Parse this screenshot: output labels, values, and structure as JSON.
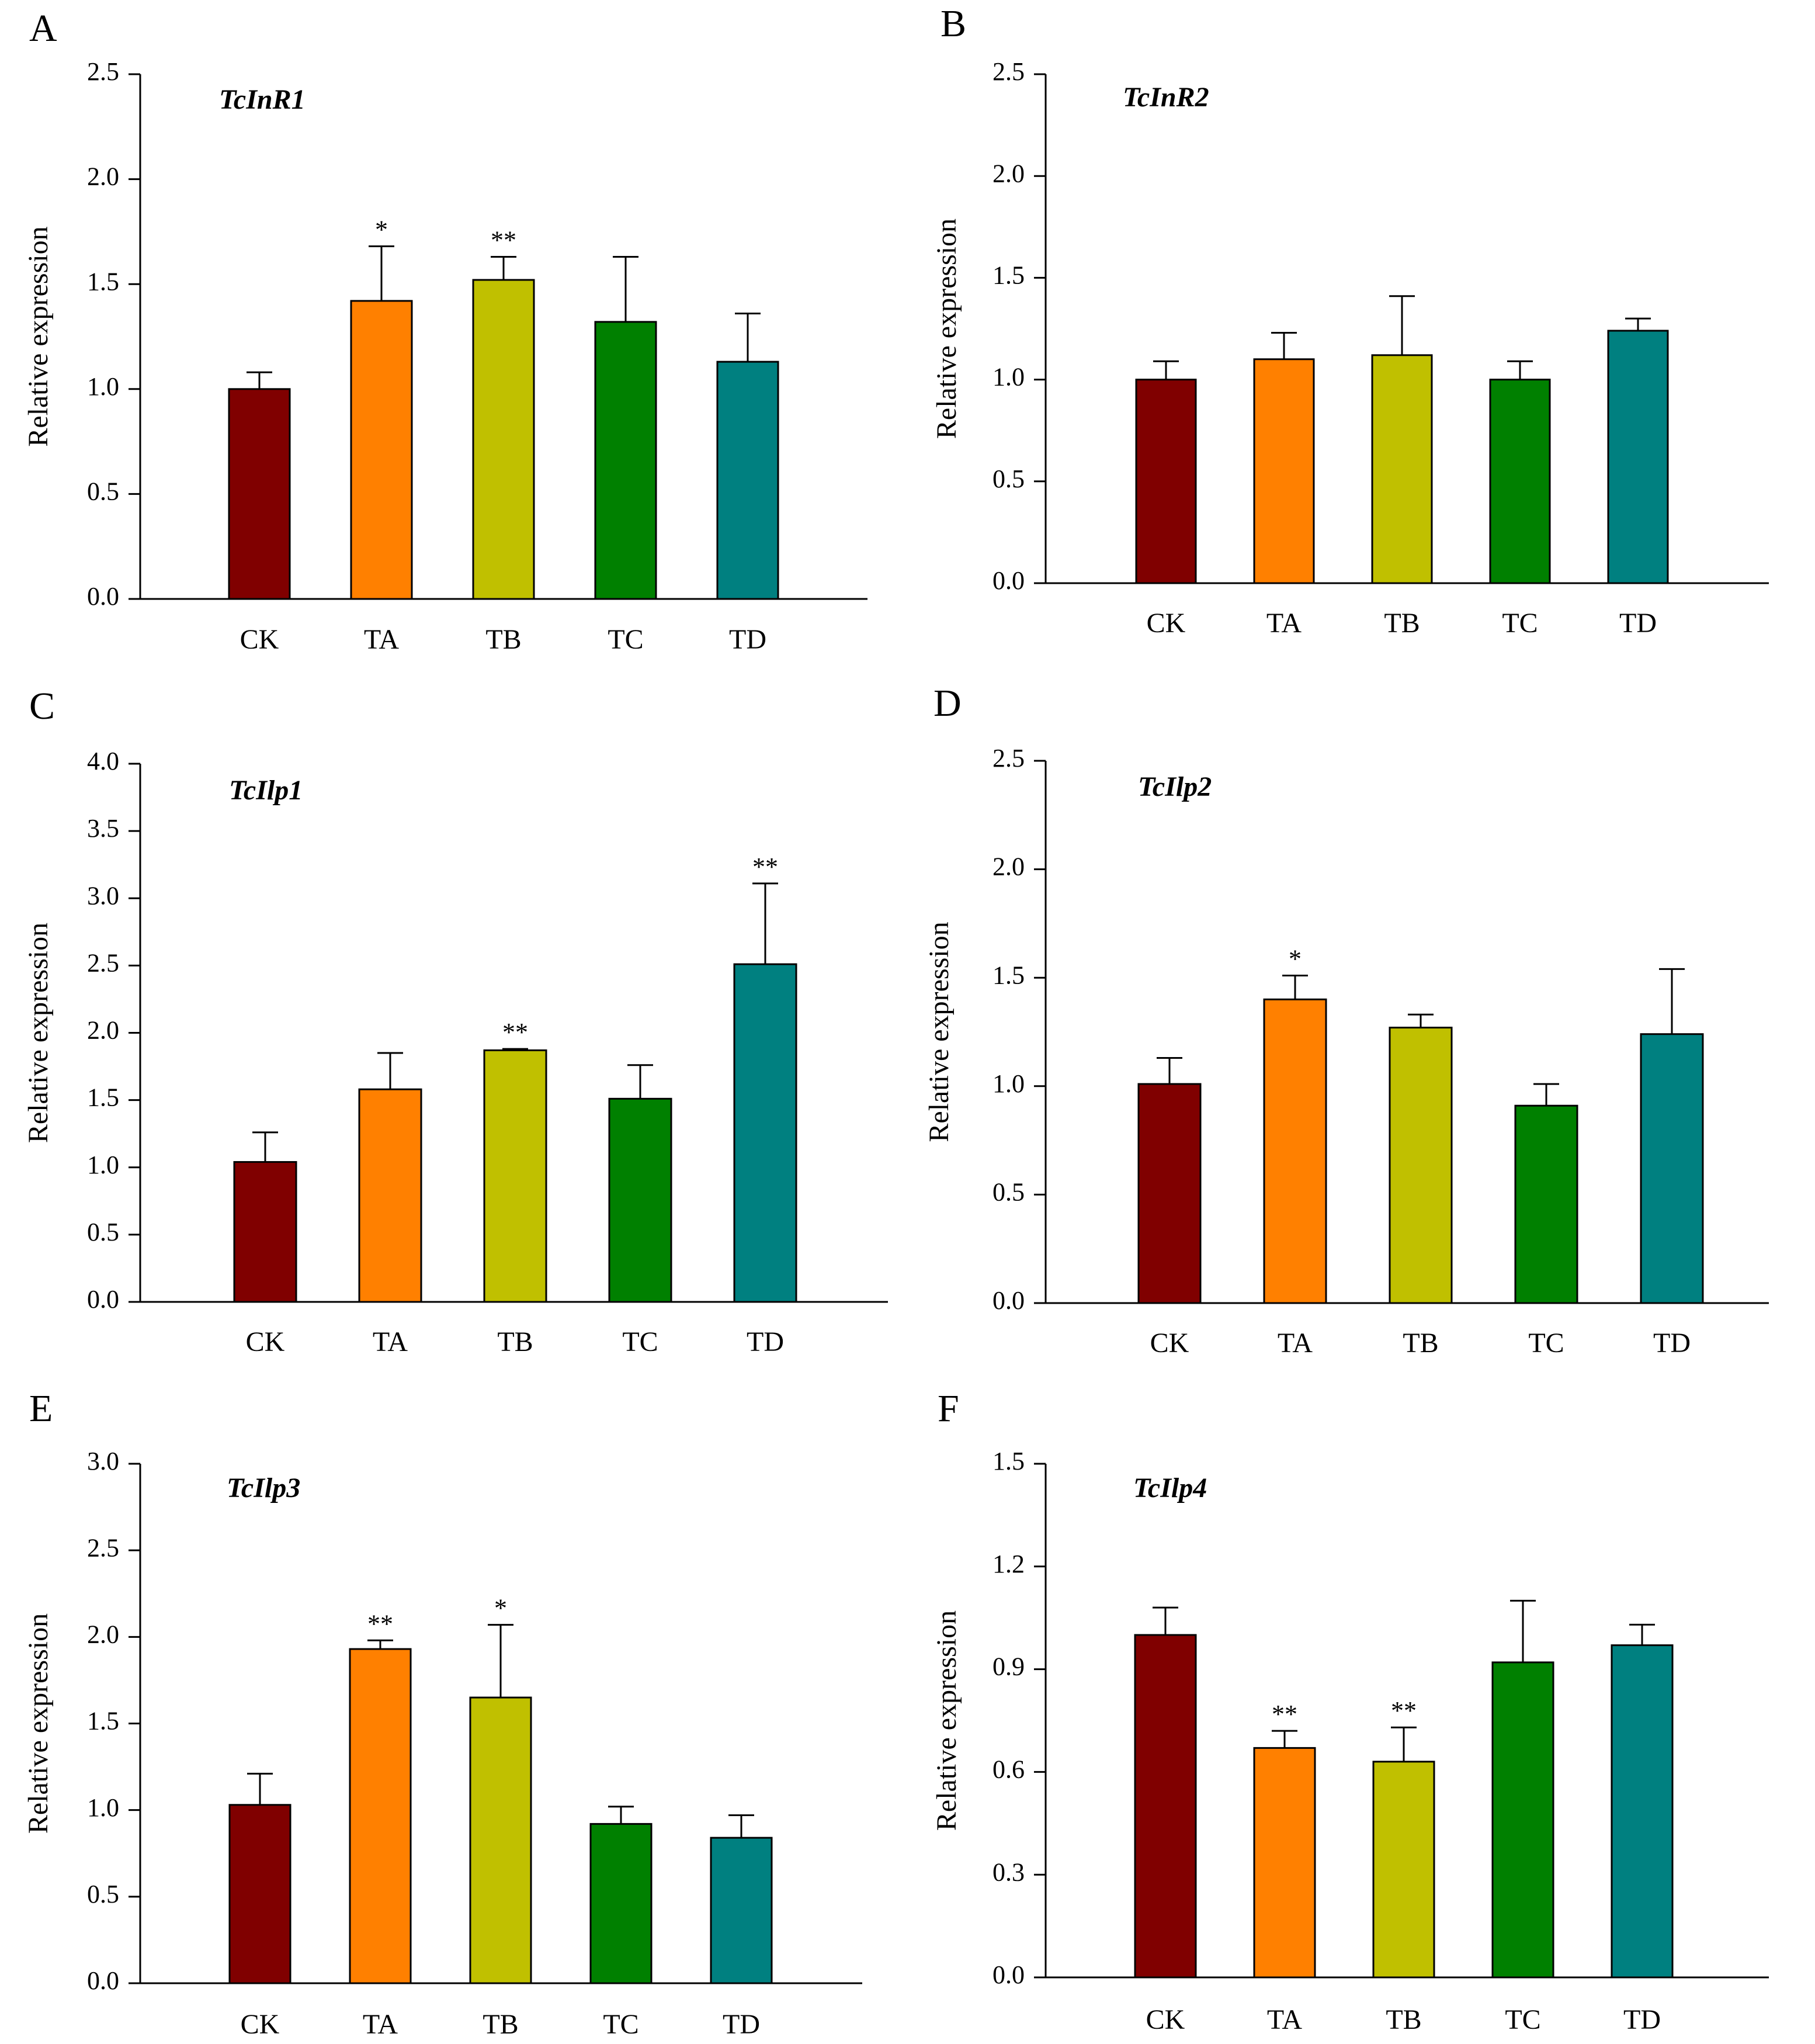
{
  "figure": {
    "colors": {
      "CK": "#800000",
      "TA": "#ff8000",
      "TB": "#c0c000",
      "TC": "#008000",
      "TD": "#008080"
    }
  },
  "chart_data": [
    {
      "panel": "A",
      "type": "bar",
      "title": "TcInR1",
      "xlabel": "",
      "ylabel": "Relative expression",
      "categories": [
        "CK",
        "TA",
        "TB",
        "TC",
        "TD"
      ],
      "values": [
        1.0,
        1.42,
        1.52,
        1.32,
        1.13
      ],
      "errors": [
        0.08,
        0.26,
        0.11,
        0.31,
        0.23
      ],
      "significance": [
        "",
        "*",
        "**",
        "",
        ""
      ],
      "ylim": [
        0,
        2.5
      ],
      "yticks": [
        "0.0",
        "0.5",
        "1.0",
        "1.5",
        "2.0",
        "2.5"
      ]
    },
    {
      "panel": "B",
      "type": "bar",
      "title": "TcInR2",
      "xlabel": "",
      "ylabel": "Relative expression",
      "categories": [
        "CK",
        "TA",
        "TB",
        "TC",
        "TD"
      ],
      "values": [
        1.0,
        1.1,
        1.12,
        1.0,
        1.24
      ],
      "errors": [
        0.09,
        0.13,
        0.29,
        0.09,
        0.06
      ],
      "significance": [
        "",
        "",
        "",
        "",
        ""
      ],
      "ylim": [
        0,
        2.5
      ],
      "yticks": [
        "0.0",
        "0.5",
        "1.0",
        "1.5",
        "2.0",
        "2.5"
      ]
    },
    {
      "panel": "C",
      "type": "bar",
      "title": "TcIlp1",
      "xlabel": "",
      "ylabel": "Relative expression",
      "categories": [
        "CK",
        "TA",
        "TB",
        "TC",
        "TD"
      ],
      "values": [
        1.04,
        1.58,
        1.87,
        1.51,
        2.51
      ],
      "errors": [
        0.22,
        0.27,
        0.01,
        0.25,
        0.6
      ],
      "significance": [
        "",
        "",
        "**",
        "",
        "**"
      ],
      "ylim": [
        0,
        4.0
      ],
      "yticks": [
        "0.0",
        "0.5",
        "1.0",
        "1.5",
        "2.0",
        "2.5",
        "3.0",
        "3.5",
        "4.0"
      ]
    },
    {
      "panel": "D",
      "type": "bar",
      "title": "TcIlp2",
      "xlabel": "",
      "ylabel": "Relative expression",
      "categories": [
        "CK",
        "TA",
        "TB",
        "TC",
        "TD"
      ],
      "values": [
        1.01,
        1.4,
        1.27,
        0.91,
        1.24
      ],
      "errors": [
        0.12,
        0.11,
        0.06,
        0.1,
        0.3
      ],
      "significance": [
        "",
        "*",
        "",
        "",
        ""
      ],
      "ylim": [
        0,
        2.5
      ],
      "yticks": [
        "0.0",
        "0.5",
        "1.0",
        "1.5",
        "2.0",
        "2.5"
      ]
    },
    {
      "panel": "E",
      "type": "bar",
      "title": "TcIlp3",
      "xlabel": "",
      "ylabel": "Relative expression",
      "categories": [
        "CK",
        "TA",
        "TB",
        "TC",
        "TD"
      ],
      "values": [
        1.03,
        1.93,
        1.65,
        0.92,
        0.84
      ],
      "errors": [
        0.18,
        0.05,
        0.42,
        0.1,
        0.13
      ],
      "significance": [
        "",
        "**",
        "*",
        "",
        ""
      ],
      "ylim": [
        0,
        3.0
      ],
      "yticks": [
        "0.0",
        "0.5",
        "1.0",
        "1.5",
        "2.0",
        "2.5",
        "3.0"
      ]
    },
    {
      "panel": "F",
      "type": "bar",
      "title": "TcIlp4",
      "xlabel": "",
      "ylabel": "Relative expression",
      "categories": [
        "CK",
        "TA",
        "TB",
        "TC",
        "TD"
      ],
      "values": [
        1.0,
        0.67,
        0.63,
        0.92,
        0.97
      ],
      "errors": [
        0.08,
        0.05,
        0.1,
        0.18,
        0.06
      ],
      "significance": [
        "",
        "**",
        "**",
        "",
        ""
      ],
      "ylim": [
        0,
        1.5
      ],
      "yticks": [
        "0.0",
        "0.3",
        "0.6",
        "0.9",
        "1.2",
        "1.5"
      ]
    }
  ]
}
